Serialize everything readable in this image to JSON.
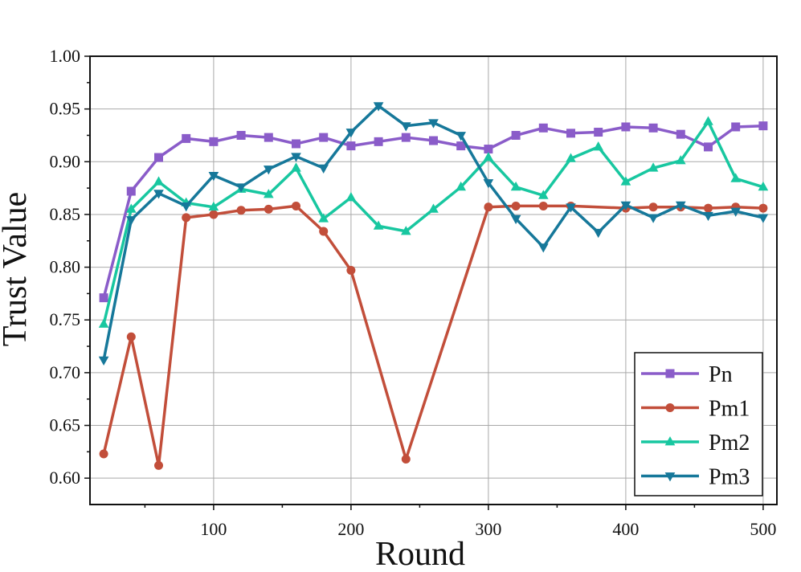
{
  "chart_data": {
    "type": "line",
    "title": "",
    "xlabel": "Round",
    "ylabel": "Trust Value",
    "xlim": [
      10,
      510
    ],
    "ylim": [
      0.575,
      1.0
    ],
    "x_ticks": [
      100,
      200,
      300,
      400,
      500
    ],
    "x_ticks_labels": [
      "100",
      "200",
      "300",
      "400",
      "500"
    ],
    "y_ticks": [
      0.6,
      0.65,
      0.7,
      0.75,
      0.8,
      0.85,
      0.9,
      0.95,
      1.0
    ],
    "y_ticks_labels": [
      "0.60",
      "0.65",
      "0.70",
      "0.75",
      "0.80",
      "0.85",
      "0.90",
      "0.95",
      "1.00"
    ],
    "grid": true,
    "legend_position": "bottom-right",
    "x": [
      20,
      40,
      60,
      80,
      100,
      120,
      140,
      160,
      180,
      200,
      220,
      240,
      260,
      280,
      300,
      320,
      340,
      360,
      380,
      400,
      420,
      440,
      460,
      480,
      500
    ],
    "series": [
      {
        "name": "Pn",
        "color": "#8a5cc9",
        "marker": "square",
        "values": [
          0.771,
          0.872,
          0.904,
          0.922,
          0.919,
          0.925,
          0.923,
          0.917,
          0.923,
          0.915,
          0.919,
          0.923,
          0.92,
          0.915,
          0.912,
          0.925,
          0.932,
          0.927,
          0.928,
          0.933,
          0.932,
          0.926,
          0.914,
          0.933,
          0.934
        ]
      },
      {
        "name": "Pm1",
        "color": "#c24e3a",
        "marker": "circle",
        "values": [
          0.623,
          0.734,
          0.612,
          0.847,
          0.85,
          0.854,
          0.855,
          0.858,
          0.834,
          0.797,
          null,
          0.618,
          null,
          null,
          0.857,
          0.858,
          0.858,
          0.858,
          null,
          0.856,
          0.857,
          0.857,
          0.856,
          0.857,
          0.856
        ]
      },
      {
        "name": "Pm2",
        "color": "#18c7a0",
        "marker": "triangle-up",
        "values": [
          0.746,
          0.855,
          0.881,
          0.861,
          0.857,
          0.874,
          0.869,
          0.894,
          0.846,
          0.866,
          0.839,
          0.834,
          0.855,
          0.876,
          0.904,
          0.876,
          0.868,
          0.903,
          0.914,
          0.881,
          0.894,
          0.901,
          0.938,
          0.884,
          0.876
        ]
      },
      {
        "name": "Pm3",
        "color": "#16789a",
        "marker": "triangle-down",
        "values": [
          0.712,
          0.845,
          0.87,
          0.858,
          0.887,
          0.876,
          0.893,
          0.905,
          0.894,
          0.928,
          0.953,
          0.934,
          0.937,
          0.925,
          0.88,
          0.846,
          0.819,
          0.857,
          0.833,
          0.859,
          0.847,
          0.859,
          0.849,
          0.853,
          0.847
        ]
      }
    ]
  }
}
